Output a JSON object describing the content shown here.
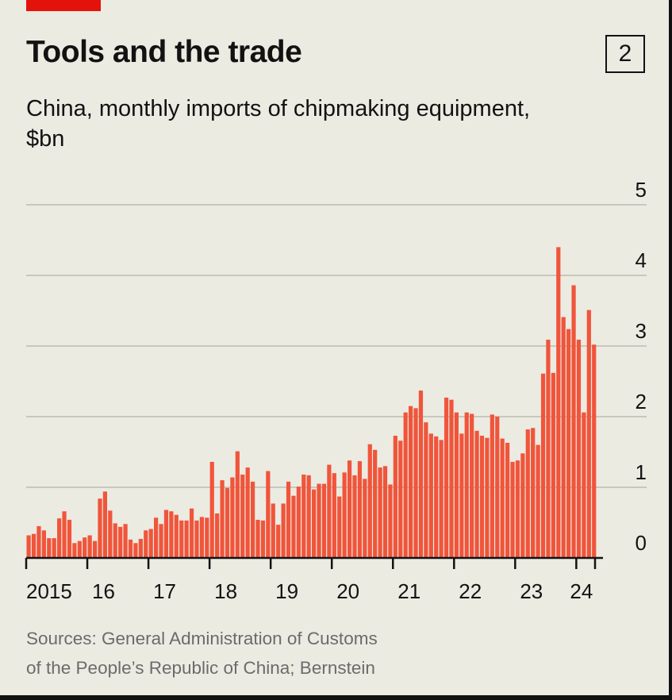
{
  "header": {
    "title": "Tools and the trade",
    "chart_number": "2",
    "subtitle": "China, monthly imports of chipmaking equipment, $bn"
  },
  "source": {
    "line1": "Sources: General Administration of Customs",
    "line2": "of the People’s Republic of China; Bernstein"
  },
  "colors": {
    "bar": "#f0553b",
    "accent": "#e3120b",
    "grid": "#c8c7bf"
  },
  "chart_data": {
    "type": "bar",
    "title": "Tools and the trade",
    "subtitle": "China, monthly imports of chipmaking equipment, $bn",
    "xlabel": "",
    "ylabel": "$bn",
    "ylim": [
      0,
      5
    ],
    "yticks": [
      "0",
      "1",
      "2",
      "3",
      "4",
      "5"
    ],
    "xticks": [
      "2015",
      "16",
      "17",
      "18",
      "19",
      "20",
      "21",
      "22",
      "23",
      "24"
    ],
    "start": "2015-01",
    "frequency": "monthly",
    "grid": true,
    "axis_side": "right",
    "values": [
      0.32,
      0.34,
      0.45,
      0.39,
      0.28,
      0.28,
      0.56,
      0.66,
      0.54,
      0.21,
      0.24,
      0.29,
      0.32,
      0.24,
      0.84,
      0.94,
      0.67,
      0.49,
      0.44,
      0.48,
      0.26,
      0.21,
      0.27,
      0.39,
      0.41,
      0.57,
      0.48,
      0.68,
      0.66,
      0.61,
      0.53,
      0.53,
      0.7,
      0.53,
      0.58,
      0.57,
      1.36,
      0.63,
      1.1,
      0.99,
      1.14,
      1.51,
      1.18,
      1.28,
      1.08,
      0.54,
      0.53,
      1.23,
      0.77,
      0.47,
      0.77,
      1.08,
      0.88,
      1.01,
      1.18,
      1.17,
      0.97,
      1.05,
      1.05,
      1.32,
      1.2,
      0.87,
      1.21,
      1.38,
      1.17,
      1.37,
      1.12,
      1.61,
      1.53,
      1.28,
      1.3,
      1.04,
      1.73,
      1.66,
      2.06,
      2.15,
      2.12,
      2.37,
      1.92,
      1.76,
      1.72,
      1.67,
      2.27,
      2.24,
      2.06,
      1.76,
      2.06,
      2.04,
      1.8,
      1.73,
      1.7,
      2.03,
      2.0,
      1.69,
      1.63,
      1.36,
      1.38,
      1.48,
      1.82,
      1.84,
      1.6,
      2.61,
      3.09,
      2.62,
      4.4,
      3.41,
      3.24,
      3.86,
      3.09,
      2.06,
      3.51,
      3.02
    ]
  }
}
